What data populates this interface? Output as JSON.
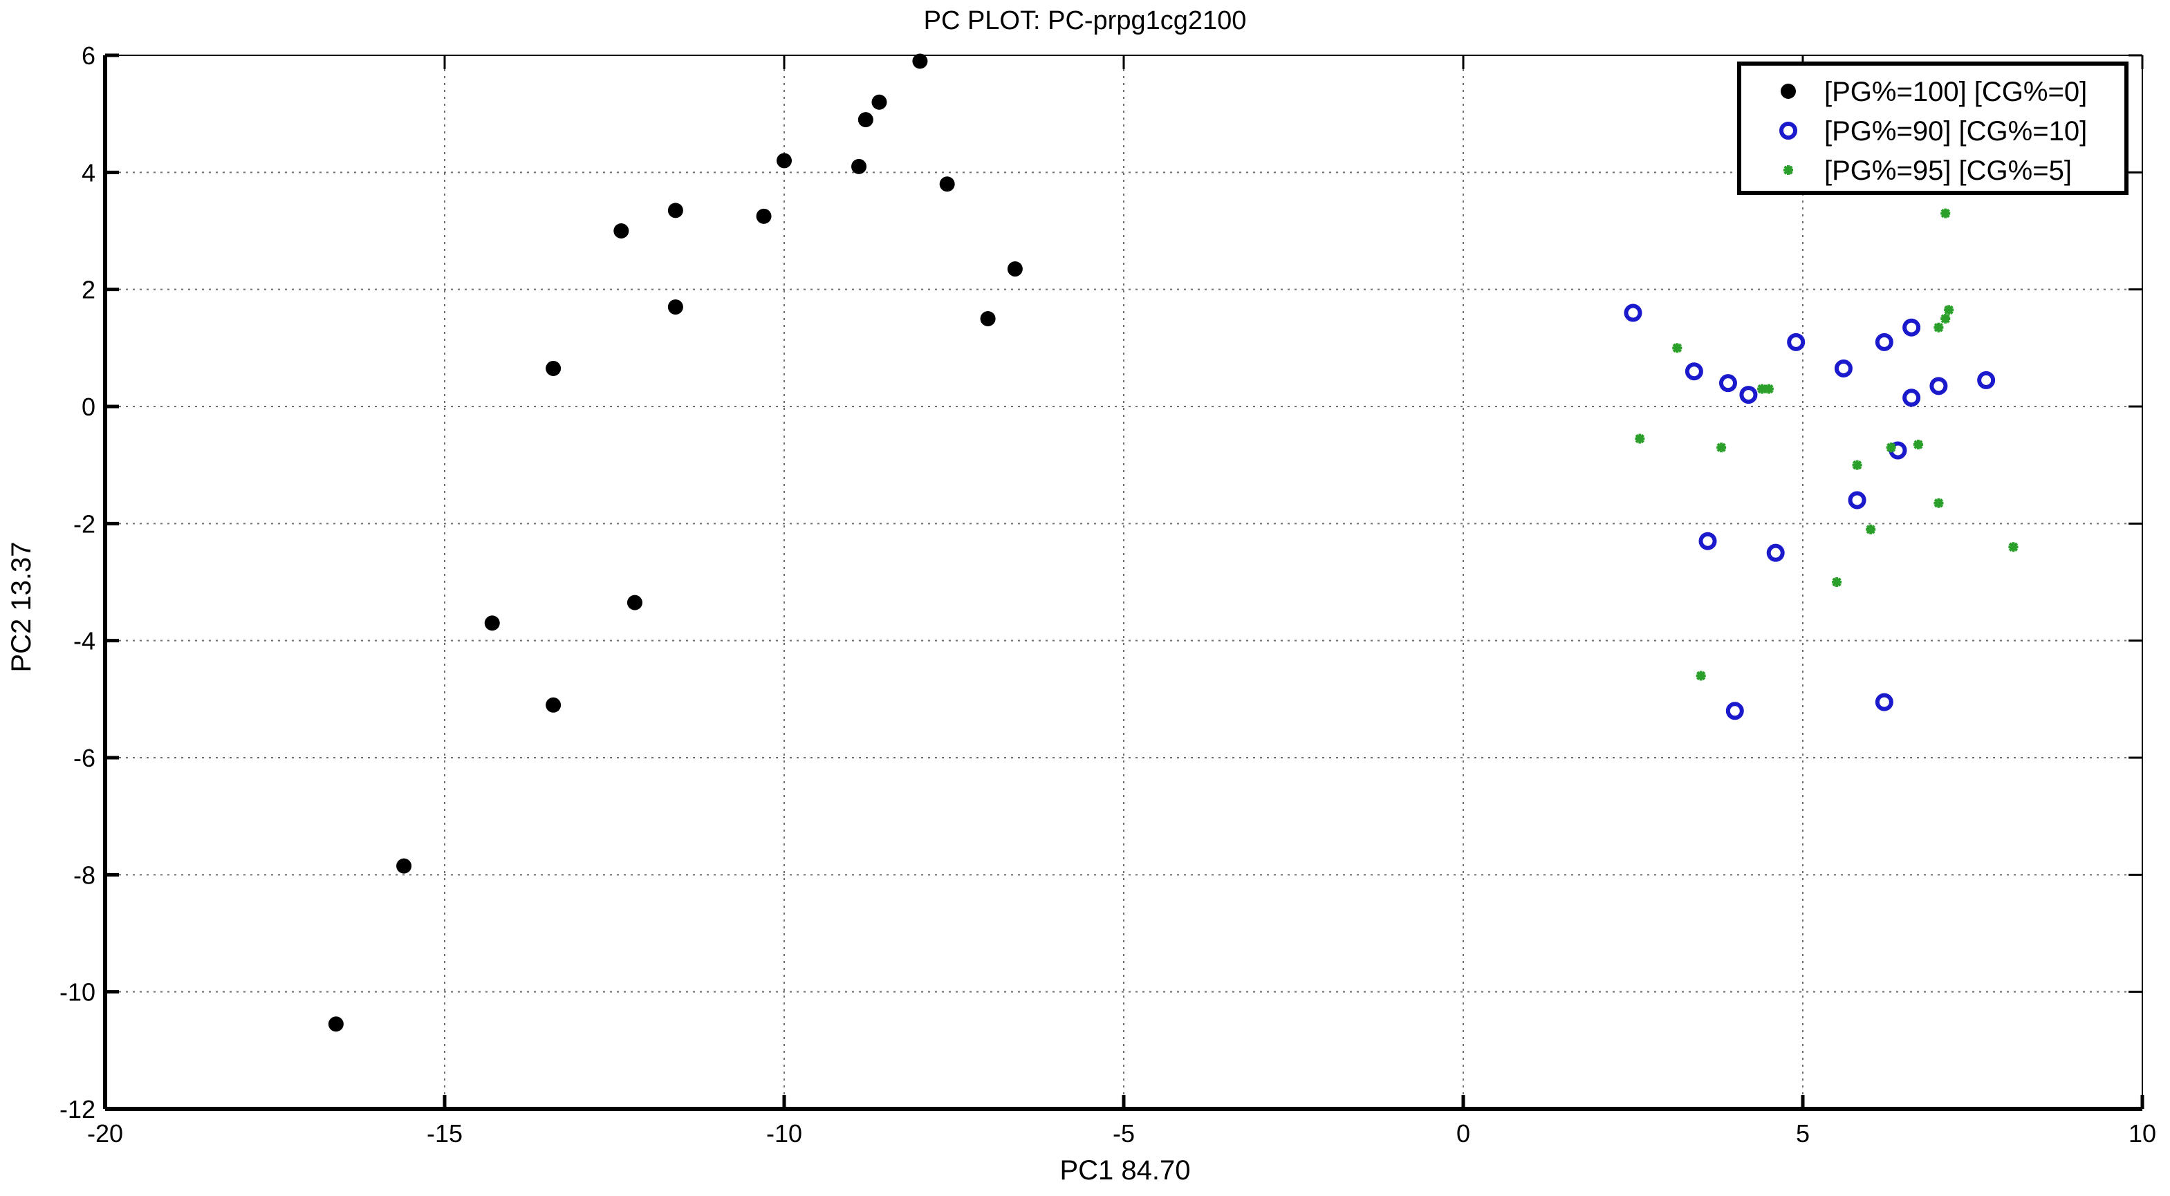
{
  "chart_data": {
    "type": "scatter",
    "title": "PC PLOT: PC-prpg1cg2100",
    "xlabel": "PC1 84.70",
    "ylabel": "PC2 13.37",
    "xlim": [
      -20,
      10
    ],
    "ylim": [
      -12,
      6
    ],
    "xticks": [
      -20,
      -15,
      -10,
      -5,
      0,
      5,
      10
    ],
    "yticks": [
      -12,
      -10,
      -8,
      -6,
      -4,
      -2,
      0,
      2,
      4,
      6
    ],
    "grid": true,
    "legend_position": "top-right",
    "series": [
      {
        "name": "[PG%=100] [CG%=0]",
        "color": "#000000",
        "marker": "filled-circle",
        "points": [
          [
            -8.0,
            5.9
          ],
          [
            -8.6,
            5.2
          ],
          [
            -8.8,
            4.9
          ],
          [
            -8.9,
            4.1
          ],
          [
            -10.0,
            4.2
          ],
          [
            -7.6,
            3.8
          ],
          [
            -10.3,
            3.25
          ],
          [
            -11.6,
            3.35
          ],
          [
            -12.4,
            3.0
          ],
          [
            -6.6,
            2.35
          ],
          [
            -11.6,
            1.7
          ],
          [
            -7.0,
            1.5
          ],
          [
            -13.4,
            0.65
          ],
          [
            -14.3,
            -3.7
          ],
          [
            -12.2,
            -3.35
          ],
          [
            -13.4,
            -5.1
          ],
          [
            -15.6,
            -7.85
          ],
          [
            -16.6,
            -10.55
          ]
        ]
      },
      {
        "name": "[PG%=90] [CG%=10]",
        "color": "#1a1acc",
        "marker": "open-circle",
        "points": [
          [
            2.5,
            1.6
          ],
          [
            4.9,
            1.1
          ],
          [
            6.2,
            1.1
          ],
          [
            6.6,
            1.35
          ],
          [
            3.4,
            0.6
          ],
          [
            5.6,
            0.65
          ],
          [
            3.9,
            0.4
          ],
          [
            4.2,
            0.2
          ],
          [
            7.0,
            0.35
          ],
          [
            7.7,
            0.45
          ],
          [
            6.6,
            0.15
          ],
          [
            6.4,
            -0.75
          ],
          [
            5.8,
            -1.6
          ],
          [
            3.6,
            -2.3
          ],
          [
            4.6,
            -2.5
          ],
          [
            4.0,
            -5.2
          ],
          [
            6.2,
            -5.05
          ]
        ]
      },
      {
        "name": "[PG%=95] [CG%=5]",
        "color": "#2aa02a",
        "marker": "star",
        "points": [
          [
            7.1,
            3.3
          ],
          [
            7.15,
            1.65
          ],
          [
            7.1,
            1.5
          ],
          [
            7.0,
            1.35
          ],
          [
            3.15,
            1.0
          ],
          [
            4.4,
            0.3
          ],
          [
            4.5,
            0.3
          ],
          [
            2.6,
            -0.55
          ],
          [
            3.8,
            -0.7
          ],
          [
            6.7,
            -0.65
          ],
          [
            6.3,
            -0.7
          ],
          [
            5.8,
            -1.0
          ],
          [
            7.0,
            -1.65
          ],
          [
            6.0,
            -2.1
          ],
          [
            8.1,
            -2.4
          ],
          [
            5.5,
            -3.0
          ],
          [
            3.5,
            -4.6
          ]
        ]
      }
    ]
  }
}
